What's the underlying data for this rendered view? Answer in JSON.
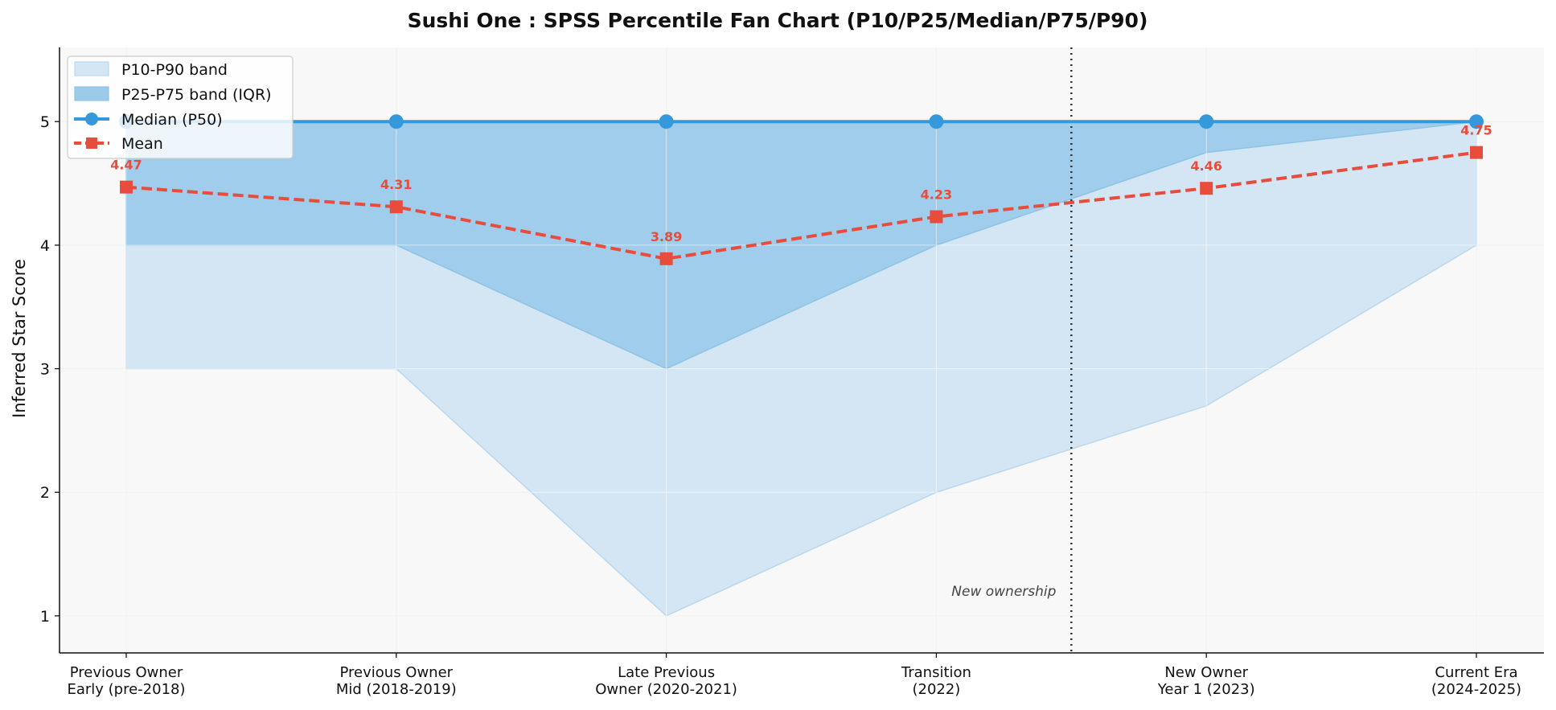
{
  "chart_data": {
    "type": "line",
    "title": "Sushi One : SPSS Percentile Fan Chart (P10/P25/Median/P75/P90)",
    "xlabel": "",
    "ylabel": "Inferred Star Score",
    "ylim": [
      0.7,
      5.6
    ],
    "yticks": [
      1,
      2,
      3,
      4,
      5
    ],
    "categories": [
      [
        "Previous Owner",
        "Early (pre-2018)"
      ],
      [
        "Previous Owner",
        "Mid (2018-2019)"
      ],
      [
        "Late Previous",
        "Owner (2020-2021)"
      ],
      [
        "Transition",
        "(2022)"
      ],
      [
        "New Owner",
        "Year 1 (2023)"
      ],
      [
        "Current Era",
        "(2024-2025)"
      ]
    ],
    "bands": {
      "p10": [
        3,
        3,
        1,
        2,
        2.7,
        4
      ],
      "p25": [
        4,
        4,
        3,
        4,
        4.75,
        5
      ],
      "p75": [
        5,
        5,
        5,
        5,
        5,
        5
      ],
      "p90": [
        5,
        5,
        5,
        5,
        5,
        5
      ]
    },
    "series": [
      {
        "name": "Median (P50)",
        "values": [
          5,
          5,
          5,
          5,
          5,
          5
        ],
        "color": "#3498db",
        "style": "solid",
        "marker": "circle"
      },
      {
        "name": "Mean",
        "values": [
          4.47,
          4.31,
          3.89,
          4.23,
          4.46,
          4.75
        ],
        "color": "#e74c3c",
        "style": "dashed",
        "marker": "square"
      }
    ],
    "mean_labels": [
      "4.47",
      "4.31",
      "3.89",
      "4.23",
      "4.46",
      "4.75"
    ],
    "legend": {
      "placement": "top-left",
      "entries": [
        "P10-P90 band",
        "P25-P75 band (IQR)",
        "Median (P50)",
        "Mean"
      ]
    },
    "vline": {
      "x": 3.5,
      "style": "dotted",
      "color": "#333333"
    },
    "annotation": {
      "text": "New ownership",
      "x": 3.25,
      "y": 1.2
    },
    "grid": true,
    "colors": {
      "outer_band": "#d4e6f4",
      "inner_band": "#9ccbea",
      "median": "#3498db",
      "mean": "#e74c3c",
      "plot_bg": "#f8f8f8"
    }
  }
}
